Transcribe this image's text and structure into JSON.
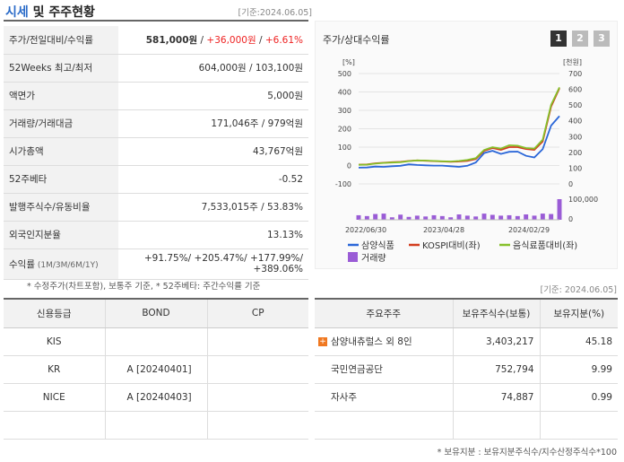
{
  "header": {
    "title_part1": "시세",
    "title_part2": " 및 주주현황",
    "base_date": "[기준:2024.06.05]"
  },
  "price_table": [
    {
      "label": "주가/전일대비/수익률",
      "value": "581,000원 / +36,000원 / +6.61%"
    },
    {
      "label": "52Weeks 최고/최저",
      "value": "604,000원 / 103,100원"
    },
    {
      "label": "액면가",
      "value": "5,000원"
    },
    {
      "label": "거래량/거래대금",
      "value": "171,046주 / 979억원"
    },
    {
      "label": "시가총액",
      "value": "43,767억원"
    },
    {
      "label": "52주베타",
      "value": "-0.52"
    },
    {
      "label": "발행주식수/유동비율",
      "value": "7,533,015주 / 53.83%"
    },
    {
      "label": "외국인지분율",
      "value": "13.13%"
    }
  ],
  "price_main": {
    "price": "581,000원",
    "sep1": " / ",
    "change": "+36,000원",
    "sep2": " / ",
    "rate": "+6.61%"
  },
  "returns": {
    "label": "수익률",
    "label_sub": " (1M/3M/6M/1Y)",
    "line1": "+91.75%/ +205.47%/ +177.99%/",
    "line2": "+389.06%"
  },
  "note1": "* 수정주가(차트포함), 보통주 기준, * 52주베타: 주간수익률 기준",
  "chart": {
    "title": "주가/상대수익률",
    "buttons": [
      "1",
      "2",
      "3"
    ],
    "left_unit": "[%]",
    "right_unit": "[천원]",
    "legend": [
      "삼양식품",
      "KOSPI대비(좌)",
      "음식료품대비(좌)",
      "거래량"
    ],
    "colors": {
      "stock": "#2a66d8",
      "kospi": "#d23c1e",
      "food": "#86c02a",
      "volume": "#9a5cd6"
    }
  },
  "chart_data": {
    "type": "line",
    "title": "주가/상대수익률",
    "x_ticks": [
      "2022/06/30",
      "2023/04/28",
      "2024/02/29"
    ],
    "y_left_ticks": [
      -100,
      0,
      100,
      200,
      300,
      400,
      500
    ],
    "y_right_ticks": [
      0,
      100,
      200,
      300,
      400,
      500,
      600,
      700
    ],
    "volume_ticks": [
      "0",
      "100,000"
    ],
    "ylim_left": [
      -100,
      500
    ],
    "ylim_right": [
      0,
      700
    ],
    "x_count": 25,
    "series": [
      {
        "name": "삼양식품",
        "axis": "right",
        "values": [
          103,
          104,
          110,
          108,
          112,
          115,
          124,
          120,
          118,
          116,
          116,
          112,
          108,
          115,
          136,
          196,
          210,
          190,
          204,
          205,
          178,
          168,
          220,
          370,
          430
        ]
      },
      {
        "name": "KOSPI대비(좌)",
        "axis": "left",
        "values": [
          5,
          6,
          12,
          15,
          18,
          20,
          25,
          28,
          26,
          24,
          22,
          20,
          22,
          25,
          35,
          80,
          95,
          85,
          100,
          100,
          90,
          85,
          130,
          320,
          420
        ]
      },
      {
        "name": "음식료품대비(좌)",
        "axis": "left",
        "values": [
          4,
          5,
          10,
          14,
          16,
          18,
          24,
          28,
          27,
          25,
          23,
          22,
          25,
          30,
          40,
          85,
          100,
          92,
          110,
          108,
          95,
          92,
          140,
          330,
          425
        ]
      }
    ],
    "volume": [
      22,
      18,
      28,
      30,
      12,
      25,
      14,
      20,
      16,
      22,
      18,
      12,
      26,
      20,
      16,
      30,
      24,
      20,
      22,
      18,
      26,
      20,
      30,
      28,
      100
    ]
  },
  "base_date2": "[기준: 2024.06.05]",
  "credit": {
    "headers": [
      "신용등급",
      "BOND",
      "CP"
    ],
    "rows": [
      {
        "agency": "KIS",
        "bond": "",
        "cp": ""
      },
      {
        "agency": "KR",
        "bond": "A  [20240401]",
        "cp": ""
      },
      {
        "agency": "NICE",
        "bond": "A  [20240403]",
        "cp": ""
      }
    ]
  },
  "holders": {
    "headers": [
      "주요주주",
      "보유주식수(보통)",
      "보유지분(%)"
    ],
    "rows": [
      {
        "name": "삼양내츄럴스 외 8인",
        "shares": "3,403,217",
        "pct": "45.18"
      },
      {
        "name": "국민연금공단",
        "shares": "752,794",
        "pct": "9.99"
      },
      {
        "name": "자사주",
        "shares": "74,887",
        "pct": "0.99"
      }
    ]
  },
  "note2": "* 보유지분 : 보유지분주식수/지수산정주식수*100"
}
